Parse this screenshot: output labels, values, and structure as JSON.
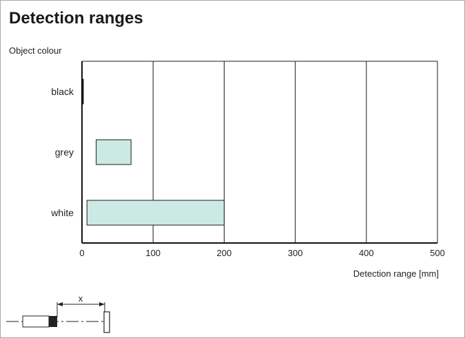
{
  "page_title": "Detection ranges",
  "chart_data": {
    "type": "bar",
    "orientation": "horizontal-range",
    "ylabel": "Object colour",
    "xlabel": "Detection range [mm]",
    "categories": [
      "black",
      "grey",
      "white"
    ],
    "ranges": [
      [
        0,
        1
      ],
      [
        20,
        69
      ],
      [
        7,
        200
      ]
    ],
    "xlim": [
      0,
      500
    ],
    "xticks": [
      0,
      100,
      200,
      300,
      400,
      500
    ],
    "grid": "vertical",
    "bar_color": "#cceae4",
    "bar_stroke": "#1a1a1a"
  },
  "diagram": {
    "dimension_label": "x"
  }
}
